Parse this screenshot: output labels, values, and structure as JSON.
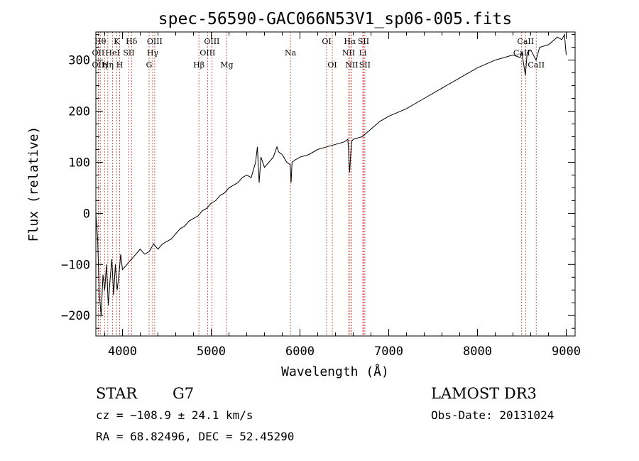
{
  "chart_data": {
    "type": "line",
    "title": "spec-56590-GAC066N53V1_sp06-005.fits",
    "xlabel": "Wavelength (Å)",
    "ylabel": "Flux (relative)",
    "xlim": [
      3700,
      9100
    ],
    "ylim": [
      -240,
      355
    ],
    "xticks": [
      4000,
      5000,
      6000,
      7000,
      8000,
      9000
    ],
    "yticks": [
      -200,
      -100,
      0,
      100,
      200,
      300
    ],
    "series": [
      {
        "name": "spectrum",
        "x": [
          3700,
          3720,
          3740,
          3760,
          3780,
          3800,
          3820,
          3840,
          3860,
          3880,
          3900,
          3920,
          3940,
          3960,
          3980,
          4000,
          4050,
          4100,
          4150,
          4200,
          4250,
          4300,
          4350,
          4400,
          4450,
          4500,
          4550,
          4600,
          4650,
          4700,
          4750,
          4800,
          4850,
          4900,
          4950,
          5000,
          5050,
          5100,
          5150,
          5200,
          5250,
          5300,
          5350,
          5400,
          5450,
          5500,
          5520,
          5540,
          5560,
          5600,
          5650,
          5700,
          5740,
          5760,
          5800,
          5850,
          5890,
          5900,
          5910,
          5950,
          6000,
          6100,
          6200,
          6300,
          6400,
          6500,
          6540,
          6560,
          6580,
          6600,
          6700,
          6800,
          6900,
          7000,
          7200,
          7400,
          7600,
          7800,
          8000,
          8200,
          8400,
          8480,
          8500,
          8540,
          8560,
          8600,
          8660,
          8700,
          8800,
          8900,
          8950,
          8980,
          9000
        ],
        "y": [
          0,
          -50,
          -160,
          -200,
          -120,
          -150,
          -100,
          -180,
          -130,
          -90,
          -160,
          -100,
          -150,
          -120,
          -80,
          -110,
          -100,
          -90,
          -80,
          -70,
          -80,
          -75,
          -60,
          -70,
          -60,
          -55,
          -50,
          -40,
          -30,
          -25,
          -15,
          -10,
          -5,
          5,
          10,
          20,
          25,
          35,
          40,
          50,
          55,
          60,
          70,
          75,
          70,
          100,
          130,
          60,
          110,
          90,
          100,
          110,
          130,
          120,
          115,
          100,
          95,
          60,
          100,
          105,
          110,
          115,
          125,
          130,
          135,
          140,
          145,
          80,
          140,
          145,
          150,
          165,
          180,
          190,
          205,
          225,
          245,
          265,
          285,
          300,
          310,
          305,
          315,
          270,
          315,
          320,
          300,
          325,
          330,
          345,
          340,
          350,
          310
        ]
      }
    ],
    "line_annotations": [
      {
        "wl": 3750,
        "label": "Hθ",
        "row": 1
      },
      {
        "wl": 3727,
        "label": "OII",
        "row": 2
      },
      {
        "wl": 3727,
        "label": "OII",
        "row": 3
      },
      {
        "wl": 3798,
        "label": "η",
        "row": 3
      },
      {
        "wl": 3835,
        "label": "Hη",
        "row": 3
      },
      {
        "wl": 3889,
        "label": "HeI",
        "row": 2
      },
      {
        "wl": 3934,
        "label": "K",
        "row": 1
      },
      {
        "wl": 3968,
        "label": "H",
        "row": 3
      },
      {
        "wl": 4072,
        "label": "SII",
        "row": 2
      },
      {
        "wl": 4102,
        "label": "Hδ",
        "row": 1
      },
      {
        "wl": 4300,
        "label": "G",
        "row": 3
      },
      {
        "wl": 4340,
        "label": "Hγ",
        "row": 2
      },
      {
        "wl": 4363,
        "label": "OIII",
        "row": 1
      },
      {
        "wl": 4861,
        "label": "Hβ",
        "row": 3
      },
      {
        "wl": 4959,
        "label": "OIII",
        "row": 2
      },
      {
        "wl": 5007,
        "label": "OIII",
        "row": 1
      },
      {
        "wl": 5175,
        "label": "Mg",
        "row": 3
      },
      {
        "wl": 5893,
        "label": "Na",
        "row": 2
      },
      {
        "wl": 6300,
        "label": "OI",
        "row": 1
      },
      {
        "wl": 6364,
        "label": "OI",
        "row": 3
      },
      {
        "wl": 6548,
        "label": "NII",
        "row": 2
      },
      {
        "wl": 6563,
        "label": "Hα",
        "row": 1
      },
      {
        "wl": 6583,
        "label": "NII",
        "row": 3
      },
      {
        "wl": 6708,
        "label": "Li",
        "row": 2
      },
      {
        "wl": 6716,
        "label": "SII",
        "row": 1
      },
      {
        "wl": 6731,
        "label": "SII",
        "row": 3
      },
      {
        "wl": 8498,
        "label": "CaII",
        "row": 2
      },
      {
        "wl": 8542,
        "label": "CaII",
        "row": 1
      },
      {
        "wl": 8662,
        "label": "CaII",
        "row": 3
      }
    ]
  },
  "info": {
    "class_label": "STAR",
    "subclass_label": "G7",
    "survey": "LAMOST DR3",
    "redshift": "cz = −108.9 ± 24.1 km/s",
    "obs_date": "Obs-Date: 20131024",
    "coords": "RA =  68.82496, DEC =  52.45290"
  }
}
